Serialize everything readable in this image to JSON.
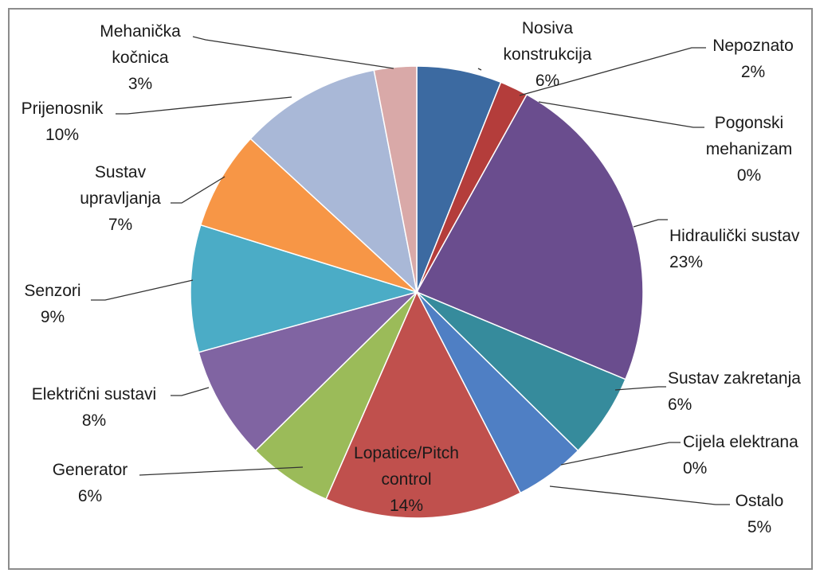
{
  "chart_data": {
    "type": "pie",
    "title": "",
    "slices": [
      {
        "label_lines": [
          "Nosiva",
          "konstrukcija"
        ],
        "value": 6,
        "pct_label": "6%",
        "color": "#3c6aa1"
      },
      {
        "label_lines": [
          "Nepoznato"
        ],
        "value": 2,
        "pct_label": "2%",
        "color": "#b43d3b"
      },
      {
        "label_lines": [
          "Pogonski",
          "mehanizam"
        ],
        "value": 0,
        "pct_label": "0%",
        "color": "#8fb04a"
      },
      {
        "label_lines": [
          "Hidraulički sustav"
        ],
        "value": 23,
        "pct_label": "23%",
        "color": "#6a4d8e"
      },
      {
        "label_lines": [
          "Sustav zakretanja"
        ],
        "value": 6,
        "pct_label": "6%",
        "color": "#368b9c"
      },
      {
        "label_lines": [
          "Cijela elektrana"
        ],
        "value": 0,
        "pct_label": "0%",
        "color": "#e08a3c"
      },
      {
        "label_lines": [
          "Ostalo"
        ],
        "value": 5,
        "pct_label": "5%",
        "color": "#4f7fc4"
      },
      {
        "label_lines": [
          "Lopatice/Pitch",
          "control"
        ],
        "value": 14,
        "pct_label": "14%",
        "color": "#c0504d"
      },
      {
        "label_lines": [
          "Generator"
        ],
        "value": 6,
        "pct_label": "6%",
        "color": "#9bbb59"
      },
      {
        "label_lines": [
          "Električni sustavi"
        ],
        "value": 8,
        "pct_label": "8%",
        "color": "#8064a2"
      },
      {
        "label_lines": [
          "Senzori"
        ],
        "value": 9,
        "pct_label": "9%",
        "color": "#4bacc6"
      },
      {
        "label_lines": [
          "Sustav",
          "upravljanja"
        ],
        "value": 7,
        "pct_label": "7%",
        "color": "#f79646"
      },
      {
        "label_lines": [
          "Prijenosnik"
        ],
        "value": 10,
        "pct_label": "10%",
        "color": "#a9b8d7"
      },
      {
        "label_lines": [
          "Mehanička",
          "kočnica"
        ],
        "value": 3,
        "pct_label": "3%",
        "color": "#d9a9a8"
      }
    ]
  }
}
